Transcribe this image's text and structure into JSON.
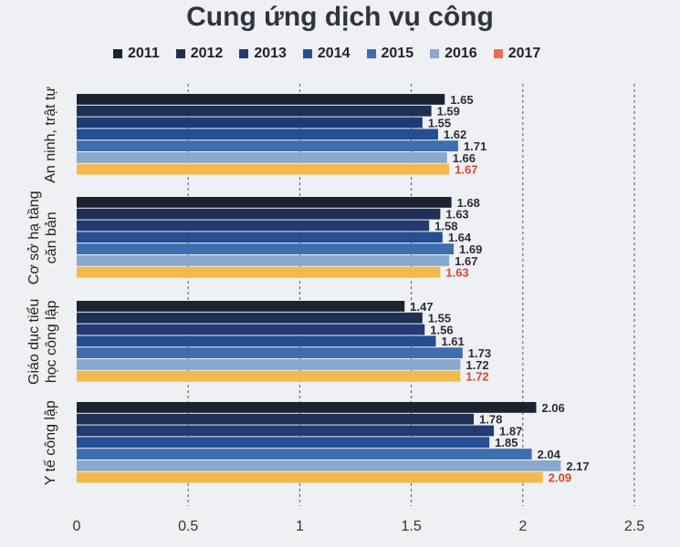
{
  "chart_data": {
    "type": "bar",
    "orientation": "horizontal",
    "title": "Cung ứng dịch vụ công",
    "xlabel": "",
    "ylabel": "",
    "xlim": [
      0,
      2.5
    ],
    "x_ticks": [
      "0",
      "0.5",
      "1",
      "1.5",
      "2",
      "2.5"
    ],
    "grid": "vertical dashed at 0.5 steps",
    "legend_position": "top",
    "categories": [
      [
        "An ninh, trật tự"
      ],
      [
        "Cơ sở hạ tầng",
        "căn bản"
      ],
      [
        "Giáo dục tiểu",
        "học công lập"
      ],
      [
        "Y tế công lập"
      ]
    ],
    "series": [
      {
        "name": "2011",
        "color": "#1b2230",
        "values": [
          1.65,
          1.68,
          1.47,
          2.06
        ]
      },
      {
        "name": "2012",
        "color": "#1f2f55",
        "values": [
          1.59,
          1.63,
          1.55,
          1.78
        ]
      },
      {
        "name": "2013",
        "color": "#223b72",
        "values": [
          1.55,
          1.58,
          1.56,
          1.87
        ]
      },
      {
        "name": "2014",
        "color": "#264e93",
        "values": [
          1.62,
          1.64,
          1.61,
          1.85
        ]
      },
      {
        "name": "2015",
        "color": "#3f6eae",
        "values": [
          1.71,
          1.69,
          1.73,
          2.04
        ]
      },
      {
        "name": "2016",
        "color": "#8aa7cc",
        "values": [
          1.66,
          1.67,
          1.72,
          2.17
        ]
      },
      {
        "name": "2017",
        "color": "#f2b94c",
        "values": [
          1.67,
          1.63,
          1.72,
          2.09
        ]
      }
    ]
  }
}
